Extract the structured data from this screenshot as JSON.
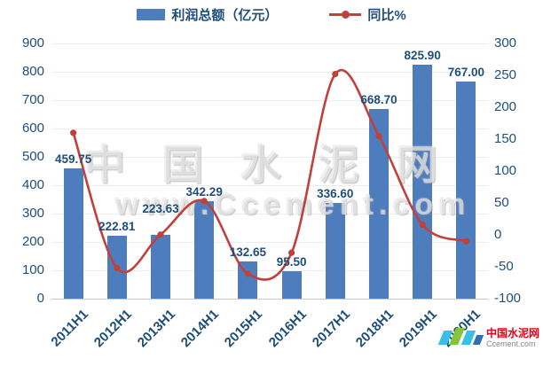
{
  "legend": {
    "bar_label": "利润总额（亿元）",
    "line_label": "同比%"
  },
  "watermark": {
    "line1": "中国水泥网",
    "line2": "www.Ccement.com"
  },
  "logo": {
    "name": "中国水泥网",
    "domain": "Ccement.com"
  },
  "colors": {
    "bar": "#4E7DBE",
    "line": "#C1403B",
    "axis_text": "#1F4E79",
    "grid": "#ECECEC",
    "axis_line": "#C9C9C9"
  },
  "chart_data": {
    "type": "bar",
    "title": "",
    "categories": [
      "2011H1",
      "2012H1",
      "2013H1",
      "2014H1",
      "2015H1",
      "2016H1",
      "2017H1",
      "2018H1",
      "2019H1",
      "2020H1"
    ],
    "series": [
      {
        "name": "利润总额（亿元）",
        "type": "bar",
        "axis": "left",
        "values": [
          459.75,
          222.81,
          223.63,
          342.29,
          132.65,
          95.5,
          336.6,
          668.7,
          825.9,
          767.0
        ],
        "labels": [
          "459.75",
          "222.81",
          "223.63",
          "342.29",
          "132.65",
          "95.50",
          "336.60",
          "668.70",
          "825.90",
          "767.00"
        ]
      },
      {
        "name": "同比%",
        "type": "line",
        "axis": "right",
        "values": [
          160,
          -52,
          0.4,
          53,
          -61,
          -28,
          252,
          155,
          16,
          -10
        ]
      }
    ],
    "left_axis": {
      "min": 0,
      "max": 900,
      "step": 100,
      "ticks": [
        0,
        100,
        200,
        300,
        400,
        500,
        600,
        700,
        800,
        900
      ]
    },
    "right_axis": {
      "min": -100,
      "max": 300,
      "step": 50,
      "ticks": [
        -100,
        -50,
        0,
        50,
        100,
        150,
        200,
        250,
        300
      ]
    },
    "grid": true,
    "legend_position": "top",
    "label_dy": [
      0,
      0,
      -19,
      0,
      0,
      0,
      0,
      0,
      0,
      0
    ]
  }
}
